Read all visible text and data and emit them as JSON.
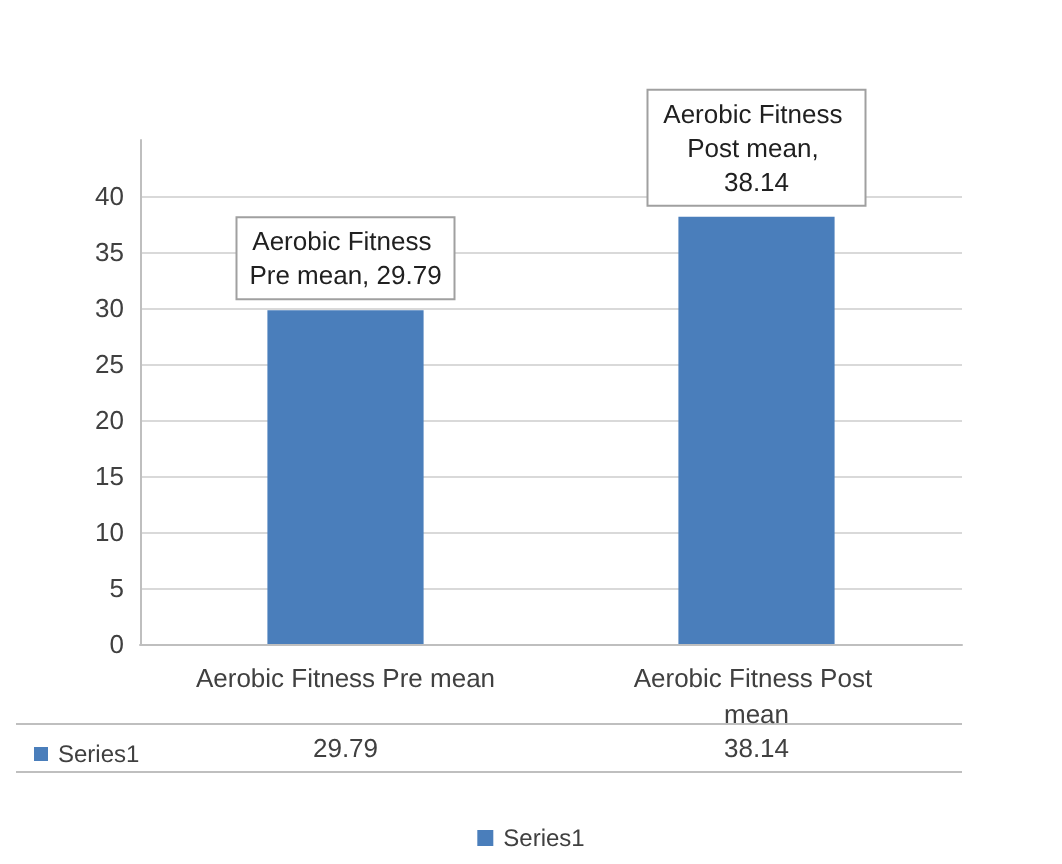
{
  "chart_data": {
    "type": "bar",
    "categories": [
      "Aerobic Fitness Pre mean",
      "Aerobic Fitness Post mean"
    ],
    "series": [
      {
        "name": "Series1",
        "color": "#4a7ebb",
        "values": [
          29.79,
          38.14
        ]
      }
    ],
    "annotations": [
      "Aerobic Fitness Pre mean, 29.79",
      "Aerobic Fitness Post mean, 38.14"
    ],
    "ylim": [
      0,
      45
    ],
    "yticks": [
      0,
      5,
      10,
      15,
      20,
      25,
      30,
      35,
      40
    ],
    "grid": "y",
    "legend": "bottom",
    "data_labels": true
  }
}
